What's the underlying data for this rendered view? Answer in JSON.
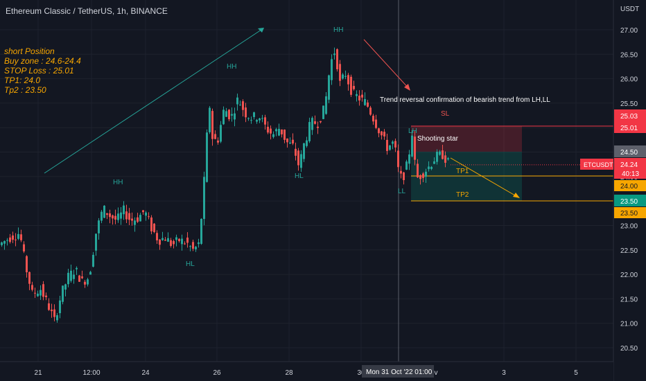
{
  "header": {
    "title": "Ethereum Classic / TetherUS, 1h, BINANCE"
  },
  "colors": {
    "background": "#131722",
    "up": "#26a69a",
    "down": "#ef5350",
    "grid": "#1e222d",
    "text": "#d1d4dc",
    "orange": "#f7a600",
    "teal_line": "#26a69a"
  },
  "note": {
    "lines": [
      "short Position",
      "Buy zone : 24.6-24.4",
      "STOP Loss : 25.01",
      "TP1: 24.0",
      "Tp2 : 23.50"
    ]
  },
  "labels": {
    "hh1": "HH",
    "hh2": "HH",
    "hh3": "HH",
    "hl1": "HL",
    "hl2": "HL",
    "ll": "LL",
    "lh": "LH",
    "trend_text": "Trend reversal confirmation of bearish trend from LH,LL",
    "sl": "SL",
    "shooting_star": "Shooting star",
    "tp1": "TP1",
    "tp2": "TP2"
  },
  "price_axis": {
    "unit": "USDT",
    "ticks": [
      "27.00",
      "26.50",
      "26.00",
      "25.50",
      "25.00",
      "24.50",
      "24.00",
      "23.50",
      "23.00",
      "22.50",
      "22.00",
      "21.50",
      "21.00",
      "20.50"
    ]
  },
  "price_tags": {
    "sl_top": "25.03",
    "sl": "25.01",
    "entry": "24.50",
    "symbol": "ETCUSDT",
    "last": "24.24",
    "countdown": "40:13",
    "tp1": "24.00",
    "tp2_a": "23.50",
    "tp2_b": "23.50"
  },
  "time_axis": {
    "ticks": [
      "21",
      "12:00",
      "24",
      "26",
      "28",
      "30",
      "3",
      "5"
    ],
    "crosshair_label": "Mon 31 Oct '22   01:00",
    "partial": "ov"
  },
  "chart_data": {
    "type": "candlestick",
    "title": "Ethereum Classic / TetherUS, 1h, BINANCE",
    "ylabel": "USDT",
    "ylim": [
      20.3,
      27.4
    ],
    "x_ticks": [
      "21",
      "12:00",
      "24",
      "26",
      "28",
      "30",
      "3",
      "5"
    ],
    "key_levels": {
      "stop_loss": 25.01,
      "entry": 24.5,
      "tp1": 24.0,
      "tp2": 23.5,
      "last_price": 24.24
    },
    "price_path": [
      [
        0,
        22.6
      ],
      [
        15,
        22.75
      ],
      [
        30,
        22.85
      ],
      [
        38,
        22.2
      ],
      [
        48,
        21.6
      ],
      [
        60,
        21.7
      ],
      [
        70,
        21.4
      ],
      [
        80,
        21.05
      ],
      [
        90,
        21.6
      ],
      [
        100,
        21.95
      ],
      [
        110,
        22.1
      ],
      [
        120,
        21.85
      ],
      [
        130,
        21.95
      ],
      [
        140,
        22.85
      ],
      [
        150,
        23.35
      ],
      [
        160,
        23.2
      ],
      [
        170,
        23.1
      ],
      [
        180,
        23.3
      ],
      [
        190,
        23.1
      ],
      [
        200,
        23.15
      ],
      [
        210,
        23.3
      ],
      [
        220,
        22.95
      ],
      [
        230,
        22.7
      ],
      [
        240,
        22.75
      ],
      [
        250,
        22.6
      ],
      [
        260,
        22.7
      ],
      [
        270,
        22.65
      ],
      [
        280,
        22.5
      ],
      [
        288,
        22.6
      ],
      [
        293,
        23.3
      ],
      [
        298,
        24.3
      ],
      [
        303,
        25.6
      ],
      [
        308,
        24.8
      ],
      [
        315,
        24.7
      ],
      [
        325,
        25.4
      ],
      [
        335,
        25.2
      ],
      [
        345,
        25.6
      ],
      [
        355,
        25.3
      ],
      [
        365,
        25.2
      ],
      [
        375,
        25.25
      ],
      [
        385,
        25.0
      ],
      [
        395,
        24.85
      ],
      [
        405,
        25.0
      ],
      [
        415,
        24.7
      ],
      [
        425,
        24.6
      ],
      [
        433,
        24.2
      ],
      [
        440,
        24.65
      ],
      [
        450,
        25.1
      ],
      [
        460,
        25.1
      ],
      [
        470,
        25.4
      ],
      [
        478,
        26.3
      ],
      [
        485,
        26.6
      ],
      [
        492,
        25.9
      ],
      [
        500,
        26.1
      ],
      [
        510,
        25.7
      ],
      [
        520,
        25.6
      ],
      [
        530,
        25.5
      ],
      [
        540,
        25.2
      ],
      [
        550,
        24.9
      ],
      [
        560,
        24.6
      ],
      [
        570,
        24.7
      ],
      [
        578,
        23.95
      ],
      [
        585,
        24.05
      ],
      [
        590,
        24.3
      ],
      [
        596,
        24.9
      ],
      [
        602,
        23.95
      ],
      [
        610,
        24.05
      ],
      [
        620,
        24.2
      ],
      [
        630,
        24.4
      ],
      [
        640,
        24.45
      ],
      [
        650,
        24.24
      ]
    ]
  }
}
